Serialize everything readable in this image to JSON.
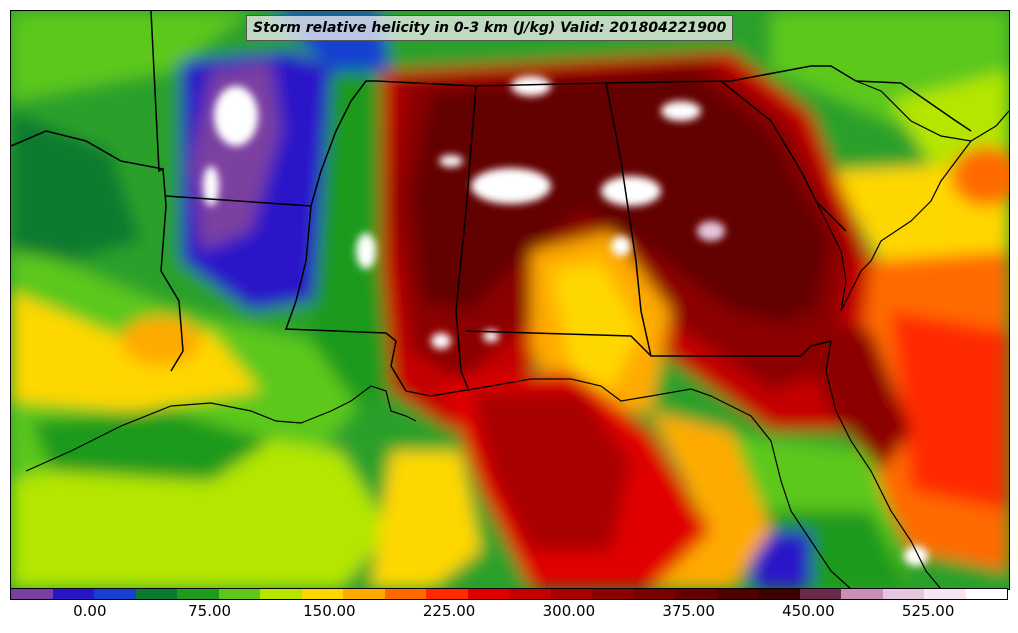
{
  "title": "Storm relative helicity in 0-3 km (J/kg) Valid: 201804221900",
  "legend": {
    "colors": [
      "#7b3fa0",
      "#2a14c8",
      "#1740d0",
      "#0b7a2e",
      "#1e9a1e",
      "#5cc81e",
      "#b4e600",
      "#ffd700",
      "#ffaa00",
      "#ff6a00",
      "#ff2a00",
      "#e00000",
      "#c40000",
      "#a80000",
      "#8c0000",
      "#780000",
      "#640000",
      "#500000",
      "#3c0000",
      "#6a2a4a",
      "#c890b4",
      "#e6c6de",
      "#f6e6f2",
      "#ffffff"
    ],
    "tick_labels": [
      "0.00",
      "75.00",
      "150.00",
      "225.00",
      "300.00",
      "375.00",
      "450.00",
      "525.00"
    ],
    "tick_values": [
      0,
      75,
      150,
      225,
      300,
      375,
      450,
      525
    ],
    "min": -50,
    "max": 575
  },
  "map": {
    "background_color": "#2aa02a",
    "border_color": "#000000"
  }
}
